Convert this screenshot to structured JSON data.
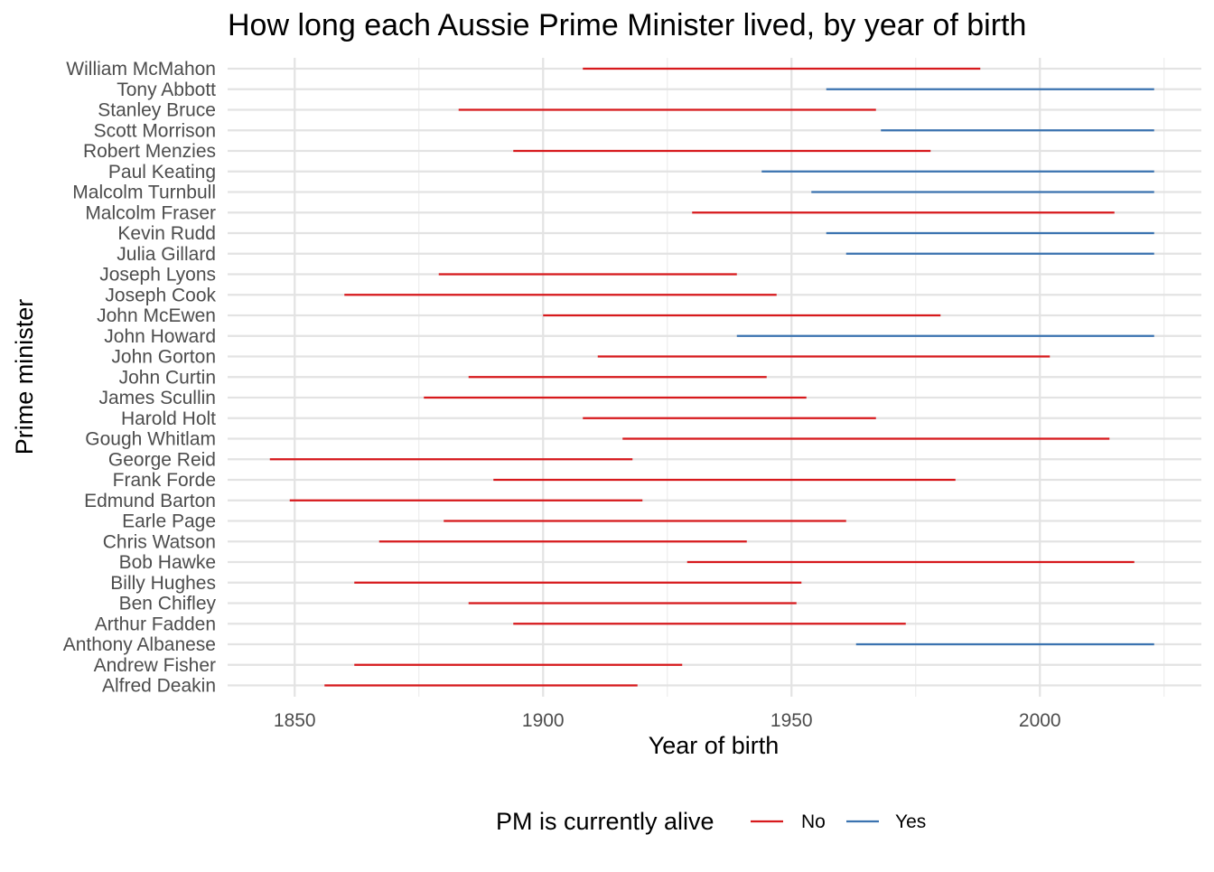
{
  "chart_data": {
    "type": "line",
    "title": "How long each Aussie Prime Minister lived, by year of birth",
    "xlabel": "Year of birth",
    "ylabel": "Prime minister",
    "xlim": [
      1836.5,
      2032.5
    ],
    "xticks": [
      1850,
      1900,
      1950,
      2000
    ],
    "xtick_labels": [
      "1850",
      "1900",
      "1950",
      "2000"
    ],
    "grid": true,
    "legend": {
      "title": "PM is currently alive",
      "placement": "bottom",
      "entries": [
        {
          "label": "No",
          "color": "#d7191c"
        },
        {
          "label": "Yes",
          "color": "#3b73b0"
        }
      ]
    },
    "colors": {
      "No": "#d7191c",
      "Yes": "#3b73b0"
    },
    "categories": [
      "William McMahon",
      "Tony Abbott",
      "Stanley Bruce",
      "Scott Morrison",
      "Robert Menzies",
      "Paul Keating",
      "Malcolm Turnbull",
      "Malcolm Fraser",
      "Kevin Rudd",
      "Julia Gillard",
      "Joseph Lyons",
      "Joseph Cook",
      "John McEwen",
      "John Howard",
      "John Gorton",
      "John Curtin",
      "James Scullin",
      "Harold Holt",
      "Gough Whitlam",
      "George Reid",
      "Frank Forde",
      "Edmund Barton",
      "Earle Page",
      "Chris Watson",
      "Bob Hawke",
      "Billy Hughes",
      "Ben Chifley",
      "Arthur Fadden",
      "Anthony Albanese",
      "Andrew Fisher",
      "Alfred Deakin"
    ],
    "segments": [
      {
        "name": "William McMahon",
        "x_start": 1908,
        "x_end": 1988,
        "alive": "No"
      },
      {
        "name": "Tony Abbott",
        "x_start": 1957,
        "x_end": 2023,
        "alive": "Yes"
      },
      {
        "name": "Stanley Bruce",
        "x_start": 1883,
        "x_end": 1967,
        "alive": "No"
      },
      {
        "name": "Scott Morrison",
        "x_start": 1968,
        "x_end": 2023,
        "alive": "Yes"
      },
      {
        "name": "Robert Menzies",
        "x_start": 1894,
        "x_end": 1978,
        "alive": "No"
      },
      {
        "name": "Paul Keating",
        "x_start": 1944,
        "x_end": 2023,
        "alive": "Yes"
      },
      {
        "name": "Malcolm Turnbull",
        "x_start": 1954,
        "x_end": 2023,
        "alive": "Yes"
      },
      {
        "name": "Malcolm Fraser",
        "x_start": 1930,
        "x_end": 2015,
        "alive": "No"
      },
      {
        "name": "Kevin Rudd",
        "x_start": 1957,
        "x_end": 2023,
        "alive": "Yes"
      },
      {
        "name": "Julia Gillard",
        "x_start": 1961,
        "x_end": 2023,
        "alive": "Yes"
      },
      {
        "name": "Joseph Lyons",
        "x_start": 1879,
        "x_end": 1939,
        "alive": "No"
      },
      {
        "name": "Joseph Cook",
        "x_start": 1860,
        "x_end": 1947,
        "alive": "No"
      },
      {
        "name": "John McEwen",
        "x_start": 1900,
        "x_end": 1980,
        "alive": "No"
      },
      {
        "name": "John Howard",
        "x_start": 1939,
        "x_end": 2023,
        "alive": "Yes"
      },
      {
        "name": "John Gorton",
        "x_start": 1911,
        "x_end": 2002,
        "alive": "No"
      },
      {
        "name": "John Curtin",
        "x_start": 1885,
        "x_end": 1945,
        "alive": "No"
      },
      {
        "name": "James Scullin",
        "x_start": 1876,
        "x_end": 1953,
        "alive": "No"
      },
      {
        "name": "Harold Holt",
        "x_start": 1908,
        "x_end": 1967,
        "alive": "No"
      },
      {
        "name": "Gough Whitlam",
        "x_start": 1916,
        "x_end": 2014,
        "alive": "No"
      },
      {
        "name": "George Reid",
        "x_start": 1845,
        "x_end": 1918,
        "alive": "No"
      },
      {
        "name": "Frank Forde",
        "x_start": 1890,
        "x_end": 1983,
        "alive": "No"
      },
      {
        "name": "Edmund Barton",
        "x_start": 1849,
        "x_end": 1920,
        "alive": "No"
      },
      {
        "name": "Earle Page",
        "x_start": 1880,
        "x_end": 1961,
        "alive": "No"
      },
      {
        "name": "Chris Watson",
        "x_start": 1867,
        "x_end": 1941,
        "alive": "No"
      },
      {
        "name": "Bob Hawke",
        "x_start": 1929,
        "x_end": 2019,
        "alive": "No"
      },
      {
        "name": "Billy Hughes",
        "x_start": 1862,
        "x_end": 1952,
        "alive": "No"
      },
      {
        "name": "Ben Chifley",
        "x_start": 1885,
        "x_end": 1951,
        "alive": "No"
      },
      {
        "name": "Arthur Fadden",
        "x_start": 1894,
        "x_end": 1973,
        "alive": "No"
      },
      {
        "name": "Anthony Albanese",
        "x_start": 1963,
        "x_end": 2023,
        "alive": "Yes"
      },
      {
        "name": "Andrew Fisher",
        "x_start": 1862,
        "x_end": 1928,
        "alive": "No"
      },
      {
        "name": "Alfred Deakin",
        "x_start": 1856,
        "x_end": 1919,
        "alive": "No"
      }
    ]
  }
}
